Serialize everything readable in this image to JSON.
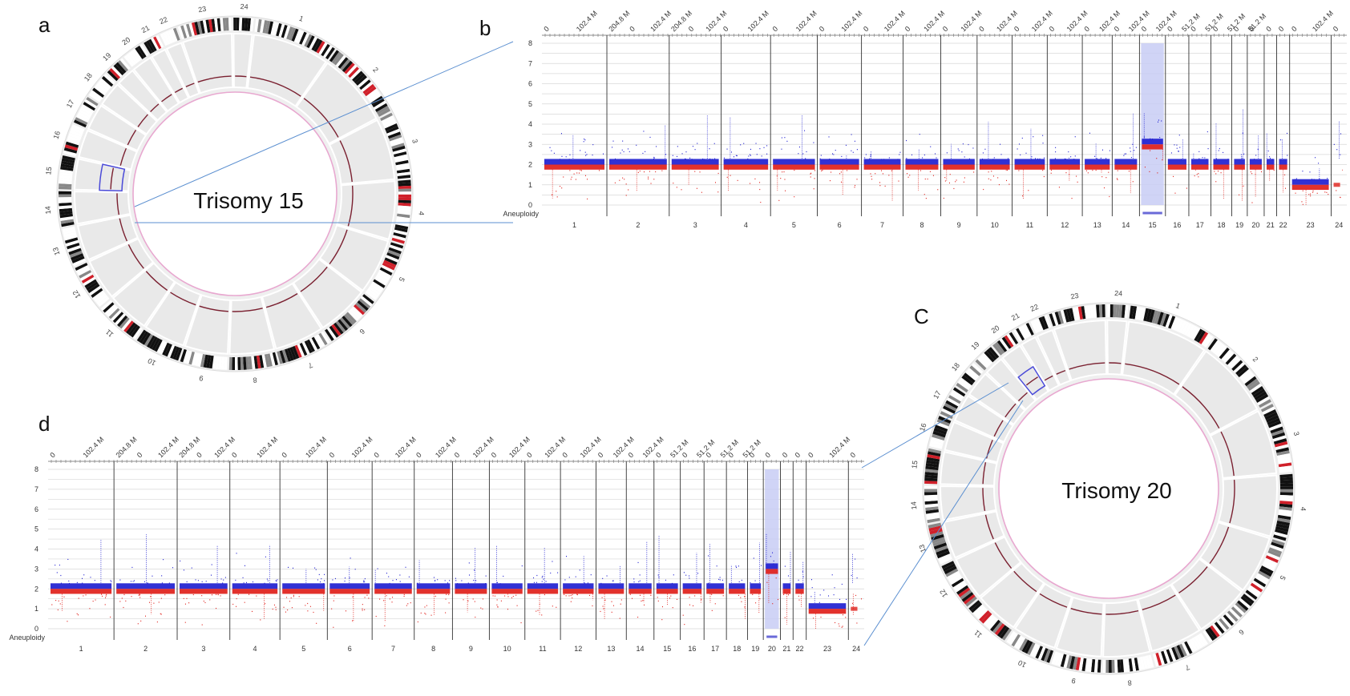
{
  "panels": {
    "a": {
      "letter": "a",
      "label": "Trisomy 15",
      "highlight_chromosome": "15"
    },
    "b": {
      "letter": "b"
    },
    "c": {
      "letter": "C",
      "label": "Trisomy 20",
      "highlight_chromosome": "20"
    },
    "d": {
      "letter": "d"
    }
  },
  "circos_chromosome_labels": [
    "1",
    "2",
    "3",
    "4",
    "5",
    "6",
    "7",
    "8",
    "9",
    "10",
    "11",
    "12",
    "13",
    "14",
    "15",
    "16",
    "17",
    "18",
    "19",
    "20",
    "21",
    "22",
    "23",
    "24"
  ],
  "chart_data": [
    {
      "panel": "b",
      "type": "scatter",
      "title": "",
      "xlabel": "",
      "ylabel": "",
      "row_label": "Aneuploidy",
      "ylim": [
        0,
        8
      ],
      "y_ticks": [
        0,
        1,
        2,
        3,
        4,
        5,
        6,
        7,
        8
      ],
      "grid": true,
      "chromosomes": [
        {
          "name": "1",
          "weight": 2.5,
          "top_ticks": [
            "0",
            "102.4 M"
          ]
        },
        {
          "name": "2",
          "weight": 2.4,
          "top_ticks": [
            "204.8 M",
            "0",
            "102.4 M"
          ]
        },
        {
          "name": "3",
          "weight": 2.0,
          "top_ticks": [
            "204.8 M",
            "0",
            "102.4 M"
          ]
        },
        {
          "name": "4",
          "weight": 1.9,
          "top_ticks": [
            "0",
            "102.4 M"
          ]
        },
        {
          "name": "5",
          "weight": 1.8,
          "top_ticks": [
            "0",
            "102.4 M"
          ]
        },
        {
          "name": "6",
          "weight": 1.7,
          "top_ticks": [
            "0",
            "102.4 M"
          ]
        },
        {
          "name": "7",
          "weight": 1.6,
          "top_ticks": [
            "0",
            "102.4 M"
          ]
        },
        {
          "name": "8",
          "weight": 1.45,
          "top_ticks": [
            "0",
            "102.4 M"
          ]
        },
        {
          "name": "9",
          "weight": 1.4,
          "top_ticks": [
            "0",
            "102.4 M"
          ]
        },
        {
          "name": "10",
          "weight": 1.35,
          "top_ticks": [
            "0",
            "102.4 M"
          ]
        },
        {
          "name": "11",
          "weight": 1.35,
          "top_ticks": [
            "0",
            "102.4 M"
          ]
        },
        {
          "name": "12",
          "weight": 1.35,
          "top_ticks": [
            "0",
            "102.4 M"
          ]
        },
        {
          "name": "13",
          "weight": 1.15,
          "top_ticks": [
            "0",
            "102.4 M"
          ]
        },
        {
          "name": "14",
          "weight": 1.05,
          "top_ticks": [
            "0",
            "102.4 M"
          ]
        },
        {
          "name": "15",
          "weight": 1.0,
          "top_ticks": [
            "0",
            "102.4 M"
          ]
        },
        {
          "name": "16",
          "weight": 0.9,
          "top_ticks": [
            "0",
            "51.2 M"
          ]
        },
        {
          "name": "17",
          "weight": 0.85,
          "top_ticks": [
            "0",
            "51.2 M"
          ]
        },
        {
          "name": "18",
          "weight": 0.8,
          "top_ticks": [
            "0",
            "51.2 M"
          ]
        },
        {
          "name": "19",
          "weight": 0.6,
          "top_ticks": [
            "0",
            "51.2 M"
          ]
        },
        {
          "name": "20",
          "weight": 0.65,
          "top_ticks": [
            "0"
          ]
        },
        {
          "name": "21",
          "weight": 0.48,
          "top_ticks": [
            "0"
          ]
        },
        {
          "name": "22",
          "weight": 0.5,
          "top_ticks": [
            "0"
          ]
        },
        {
          "name": "23",
          "weight": 1.6,
          "top_ticks": [
            "0",
            "102.4 M"
          ]
        },
        {
          "name": "24",
          "weight": 0.6,
          "top_ticks": [
            "0"
          ]
        }
      ],
      "baseline_copy_number": 2,
      "chrX_copy_number": 1,
      "gained_chromosome": "15",
      "gained_copy_number": 3,
      "series": [
        {
          "name": "",
          "color": "#1f1fd0"
        },
        {
          "name": "",
          "color": "#e0201a"
        }
      ]
    },
    {
      "panel": "d",
      "type": "scatter",
      "title": "",
      "xlabel": "",
      "ylabel": "",
      "row_label": "Aneuploidy",
      "ylim": [
        0,
        8
      ],
      "y_ticks": [
        0,
        1,
        2,
        3,
        4,
        5,
        6,
        7,
        8
      ],
      "grid": true,
      "chromosomes": [
        {
          "name": "1",
          "weight": 2.5,
          "top_ticks": [
            "0",
            "102.4 M"
          ]
        },
        {
          "name": "2",
          "weight": 2.4,
          "top_ticks": [
            "204.8 M",
            "0",
            "102.4 M"
          ]
        },
        {
          "name": "3",
          "weight": 2.0,
          "top_ticks": [
            "204.8 M",
            "0",
            "102.4 M"
          ]
        },
        {
          "name": "4",
          "weight": 1.9,
          "top_ticks": [
            "0",
            "102.4 M"
          ]
        },
        {
          "name": "5",
          "weight": 1.8,
          "top_ticks": [
            "0",
            "102.4 M"
          ]
        },
        {
          "name": "6",
          "weight": 1.7,
          "top_ticks": [
            "0",
            "102.4 M"
          ]
        },
        {
          "name": "7",
          "weight": 1.6,
          "top_ticks": [
            "0",
            "102.4 M"
          ]
        },
        {
          "name": "8",
          "weight": 1.45,
          "top_ticks": [
            "0",
            "102.4 M"
          ]
        },
        {
          "name": "9",
          "weight": 1.4,
          "top_ticks": [
            "0",
            "102.4 M"
          ]
        },
        {
          "name": "10",
          "weight": 1.35,
          "top_ticks": [
            "0",
            "102.4 M"
          ]
        },
        {
          "name": "11",
          "weight": 1.35,
          "top_ticks": [
            "0",
            "102.4 M"
          ]
        },
        {
          "name": "12",
          "weight": 1.35,
          "top_ticks": [
            "0",
            "102.4 M"
          ]
        },
        {
          "name": "13",
          "weight": 1.15,
          "top_ticks": [
            "0",
            "102.4 M"
          ]
        },
        {
          "name": "14",
          "weight": 1.05,
          "top_ticks": [
            "0",
            "102.4 M"
          ]
        },
        {
          "name": "15",
          "weight": 1.0,
          "top_ticks": [
            "0",
            "51.2 M"
          ]
        },
        {
          "name": "16",
          "weight": 0.9,
          "top_ticks": [
            "0",
            "51.2 M"
          ]
        },
        {
          "name": "17",
          "weight": 0.85,
          "top_ticks": [
            "0",
            "51.2 M"
          ]
        },
        {
          "name": "18",
          "weight": 0.8,
          "top_ticks": [
            "0",
            "51.2 M"
          ]
        },
        {
          "name": "19",
          "weight": 0.6,
          "top_ticks": [
            "0"
          ]
        },
        {
          "name": "20",
          "weight": 0.65,
          "top_ticks": [
            "0"
          ]
        },
        {
          "name": "21",
          "weight": 0.48,
          "top_ticks": [
            "0"
          ]
        },
        {
          "name": "22",
          "weight": 0.5,
          "top_ticks": [
            "0"
          ]
        },
        {
          "name": "23",
          "weight": 1.6,
          "top_ticks": [
            "0",
            "102.4 M"
          ]
        },
        {
          "name": "24",
          "weight": 0.6,
          "top_ticks": [
            "0"
          ]
        }
      ],
      "baseline_copy_number": 2,
      "chrX_copy_number": 1,
      "gained_chromosome": "20",
      "gained_copy_number": 3,
      "series": [
        {
          "name": "",
          "color": "#1f1fd0"
        },
        {
          "name": "",
          "color": "#e0201a"
        }
      ]
    }
  ],
  "colors": {
    "gain_series": "#1f1fd0",
    "loss_series": "#e0201a",
    "highlight_band": "#c8ccf4",
    "connector_line": "#5b8fd0",
    "circos_inner_circle": "#e8a8d0",
    "circos_track_line": "#7a2030"
  }
}
